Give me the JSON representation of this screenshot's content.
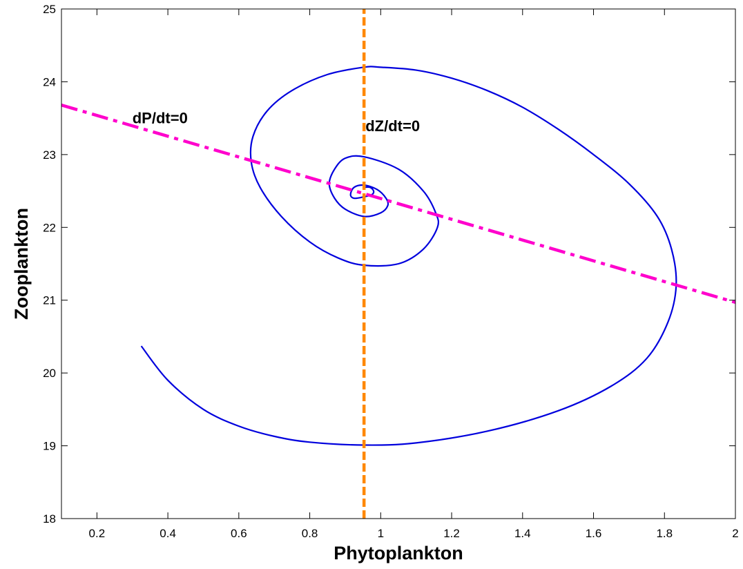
{
  "chart_data": {
    "type": "line",
    "title": "",
    "xlabel": "Phytoplankton",
    "ylabel": "Zooplankton",
    "xlim": [
      0.1,
      2
    ],
    "ylim": [
      18,
      25
    ],
    "xticks": [
      0.2,
      0.4,
      0.6,
      0.8,
      1,
      1.2,
      1.4,
      1.6,
      1.8,
      2
    ],
    "yticks": [
      18,
      19,
      20,
      21,
      22,
      23,
      24,
      25
    ],
    "grid": false,
    "series": [
      {
        "role": "trajectory",
        "color": "#0000dd",
        "style": "solid",
        "x": [
          0.325,
          0.4,
          0.5,
          0.6,
          0.7,
          0.8,
          0.953,
          1.1,
          1.3,
          1.5,
          1.65,
          1.75,
          1.81,
          1.833,
          1.82,
          1.78,
          1.7,
          1.6,
          1.5,
          1.4,
          1.3,
          1.2,
          1.1,
          1.0,
          0.953,
          0.85,
          0.75,
          0.68,
          0.64,
          0.635,
          0.66,
          0.72,
          0.8,
          0.88,
          0.953,
          1.05,
          1.12,
          1.16,
          1.155,
          1.12,
          1.05,
          0.953,
          0.9,
          0.87,
          0.855,
          0.87,
          0.9,
          0.953,
          1.0,
          1.02,
          1.015,
          0.99,
          0.953,
          0.925,
          0.915,
          0.925,
          0.953,
          0.975,
          0.98,
          0.97,
          0.953
        ],
        "y": [
          20.37,
          19.9,
          19.5,
          19.27,
          19.13,
          19.05,
          19.01,
          19.04,
          19.2,
          19.48,
          19.82,
          20.2,
          20.7,
          21.2,
          21.7,
          22.15,
          22.6,
          23.0,
          23.35,
          23.65,
          23.88,
          24.05,
          24.16,
          24.2,
          24.2,
          24.1,
          23.88,
          23.6,
          23.25,
          22.9,
          22.55,
          22.15,
          21.8,
          21.58,
          21.48,
          21.5,
          21.7,
          22.0,
          22.2,
          22.5,
          22.8,
          22.97,
          22.95,
          22.8,
          22.6,
          22.4,
          22.25,
          22.15,
          22.2,
          22.3,
          22.4,
          22.52,
          22.58,
          22.55,
          22.45,
          22.4,
          22.42,
          22.45,
          22.5,
          22.55,
          22.55
        ]
      },
      {
        "role": "P-nullcline",
        "color": "#ff00cc",
        "style": "dashdot",
        "x": [
          0.1,
          2.0
        ],
        "y": [
          23.68,
          20.97
        ]
      },
      {
        "role": "Z-nullcline",
        "color": "#ff8800",
        "style": "dashed",
        "x": [
          0.953,
          0.953
        ],
        "y": [
          18,
          25
        ]
      }
    ],
    "annotations": [
      {
        "text": "dP/dt=0",
        "x": 0.3,
        "y": 23.43
      },
      {
        "text": "dZ/dt=0",
        "x": 0.957,
        "y": 23.32
      }
    ]
  }
}
